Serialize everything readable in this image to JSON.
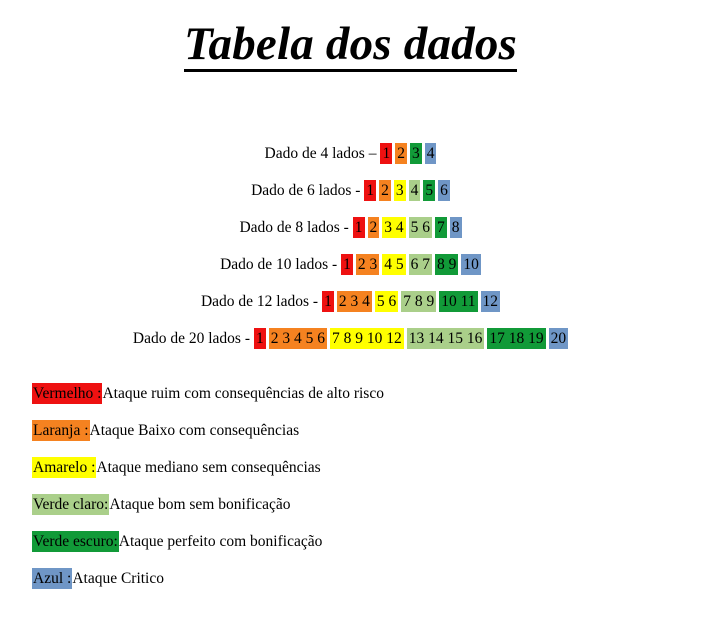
{
  "page_title": "Tabela dos dados",
  "colors": {
    "vermelho": "#ee1111",
    "laranja": "#f58220",
    "amarelo": "#ffff00",
    "verde_claro": "#aacf8a",
    "verde_escuro": "#119a38",
    "azul": "#6f96c6"
  },
  "dice": [
    {
      "label": "Dado de 4 lados",
      "sep": "–",
      "groups": [
        {
          "color": "vermelho",
          "text": "1"
        },
        {
          "color": "laranja",
          "text": "2"
        },
        {
          "color": "verde_escuro",
          "text": "3"
        },
        {
          "color": "azul",
          "text": "4"
        }
      ]
    },
    {
      "label": "Dado de 6 lados",
      "sep": "-",
      "groups": [
        {
          "color": "vermelho",
          "text": "1"
        },
        {
          "color": "laranja",
          "text": "2"
        },
        {
          "color": "amarelo",
          "text": "3"
        },
        {
          "color": "verde_claro",
          "text": "4"
        },
        {
          "color": "verde_escuro",
          "text": "5"
        },
        {
          "color": "azul",
          "text": "6"
        }
      ]
    },
    {
      "label": "Dado de  8 lados",
      "sep": "-",
      "groups": [
        {
          "color": "vermelho",
          "text": "1"
        },
        {
          "color": "laranja",
          "text": "2"
        },
        {
          "color": "amarelo",
          "text": "3 4"
        },
        {
          "color": "verde_claro",
          "text": "5 6"
        },
        {
          "color": "verde_escuro",
          "text": "7"
        },
        {
          "color": "azul",
          "text": "8"
        }
      ]
    },
    {
      "label": "Dado de 10 lados",
      "sep": "-",
      "groups": [
        {
          "color": "vermelho",
          "text": "1"
        },
        {
          "color": "laranja",
          "text": "2 3"
        },
        {
          "color": "amarelo",
          "text": "4 5"
        },
        {
          "color": "verde_claro",
          "text": "6 7"
        },
        {
          "color": "verde_escuro",
          "text": "8 9"
        },
        {
          "color": "azul",
          "text": "10"
        }
      ]
    },
    {
      "label": "Dado de 12 lados",
      "sep": "-",
      "groups": [
        {
          "color": "vermelho",
          "text": "1"
        },
        {
          "color": "laranja",
          "text": "2 3 4"
        },
        {
          "color": "amarelo",
          "text": "5 6"
        },
        {
          "color": "verde_claro",
          "text": "7 8 9"
        },
        {
          "color": "verde_escuro",
          "text": "10 11"
        },
        {
          "color": "azul",
          "text": "12"
        }
      ]
    },
    {
      "label": "Dado de 20 lados",
      "sep": "-",
      "groups": [
        {
          "color": "vermelho",
          "text": "1"
        },
        {
          "color": "laranja",
          "text": "2 3 4 5 6"
        },
        {
          "color": "amarelo",
          "text": "7 8 9 10 12"
        },
        {
          "color": "verde_claro",
          "text": "13 14 15 16"
        },
        {
          "color": "verde_escuro",
          "text": "17 18 19"
        },
        {
          "color": "azul",
          "text": "20"
        }
      ]
    }
  ],
  "legend": [
    {
      "color": "vermelho",
      "key": "Vermelho :",
      "desc": "Ataque ruim com consequências de alto risco"
    },
    {
      "color": "laranja",
      "key": "Laranja :",
      "desc": "Ataque Baixo com consequências"
    },
    {
      "color": "amarelo",
      "key": "Amarelo :",
      "desc": "Ataque mediano sem consequências"
    },
    {
      "color": "verde_claro",
      "key": "Verde claro:",
      "desc": "Ataque bom sem bonificação"
    },
    {
      "color": "verde_escuro",
      "key": "Verde escuro:",
      "desc": "Ataque perfeito com bonificação"
    },
    {
      "color": "azul",
      "key": "Azul :",
      "desc": "Ataque Critico"
    }
  ]
}
